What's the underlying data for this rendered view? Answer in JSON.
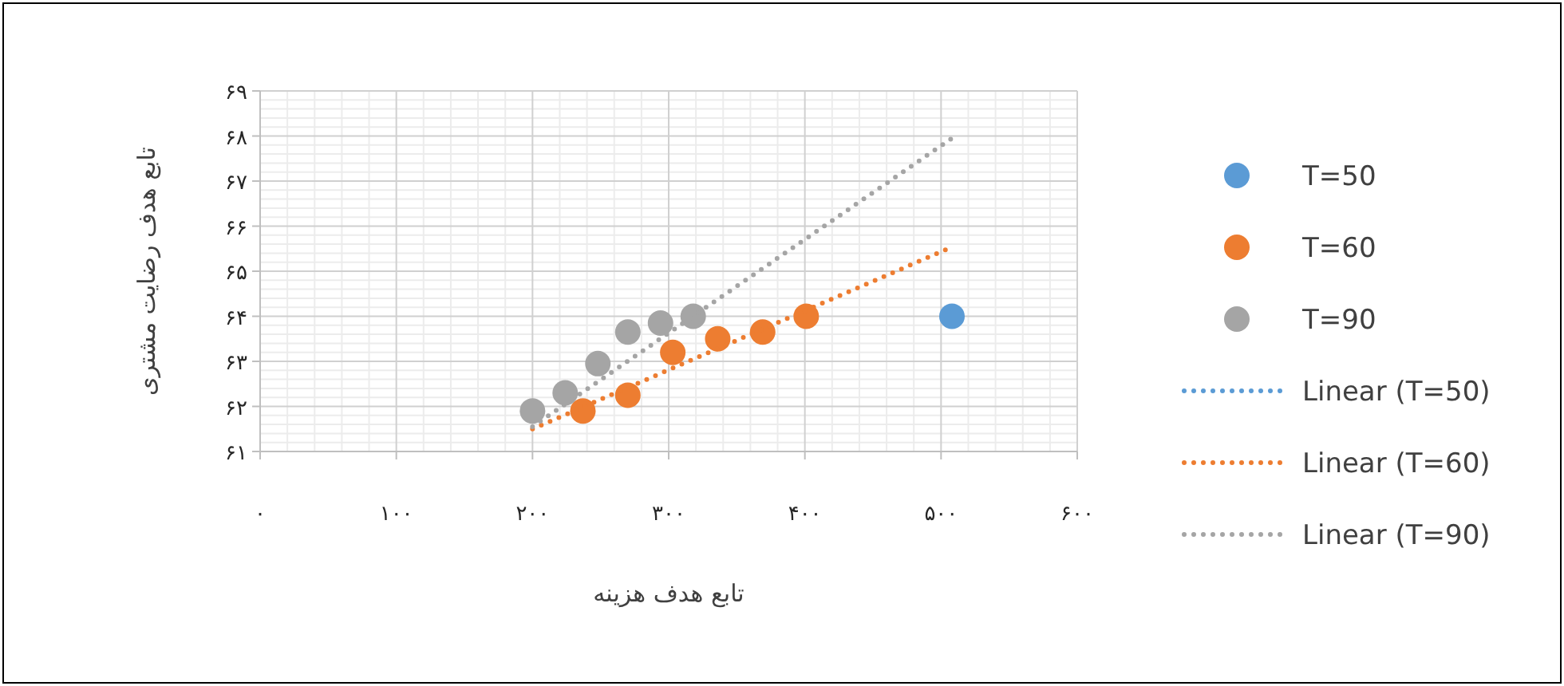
{
  "chart_data": {
    "type": "scatter",
    "xlabel": "تابع هدف هزینه",
    "ylabel": "تابع هدف رضایت مشتری",
    "xlim": [
      0,
      600
    ],
    "ylim": [
      61,
      69
    ],
    "xticks": [
      {
        "value": 0,
        "label": "۰"
      },
      {
        "value": 100,
        "label": "۱۰۰"
      },
      {
        "value": 200,
        "label": "۲۰۰"
      },
      {
        "value": 300,
        "label": "۳۰۰"
      },
      {
        "value": 400,
        "label": "۴۰۰"
      },
      {
        "value": 500,
        "label": "۵۰۰"
      },
      {
        "value": 600,
        "label": "۶۰۰"
      }
    ],
    "yticks": [
      {
        "value": 61,
        "label": "۶۱"
      },
      {
        "value": 62,
        "label": "۶۲"
      },
      {
        "value": 63,
        "label": "۶۳"
      },
      {
        "value": 64,
        "label": "۶۴"
      },
      {
        "value": 65,
        "label": "۶۵"
      },
      {
        "value": 66,
        "label": "۶۶"
      },
      {
        "value": 67,
        "label": "۶۷"
      },
      {
        "value": 68,
        "label": "۶۸"
      },
      {
        "value": 69,
        "label": "۶۹"
      }
    ],
    "grid": true,
    "legend": "right",
    "series": [
      {
        "name": "T=50",
        "marker": "circle",
        "color": "#5b9bd5",
        "x": [
          508
        ],
        "values": [
          64.0
        ]
      },
      {
        "name": "T=60",
        "marker": "circle",
        "color": "#ed7d31",
        "x": [
          237,
          270,
          303,
          336,
          369,
          401
        ],
        "values": [
          61.9,
          62.25,
          63.2,
          63.5,
          63.65,
          64.0
        ]
      },
      {
        "name": "T=90",
        "marker": "circle",
        "color": "#a5a5a5",
        "x": [
          200,
          224,
          248,
          270,
          294,
          318
        ],
        "values": [
          61.9,
          62.3,
          62.95,
          63.65,
          63.85,
          64.0
        ]
      },
      {
        "name": "Linear (T=50)",
        "type": "line",
        "line_style": "dotted",
        "color": "#5b9bd5"
      },
      {
        "name": "Linear (T=60)",
        "type": "line",
        "line_style": "dotted",
        "marker": "none",
        "color": "#ed7d31",
        "x": [
          200,
          509
        ],
        "values": [
          61.5,
          65.55
        ]
      },
      {
        "name": "Linear (T=90)",
        "type": "line",
        "line_style": "dotted",
        "marker": "none",
        "color": "#a5a5a5",
        "x": [
          200,
          508
        ],
        "values": [
          61.55,
          67.95
        ]
      }
    ]
  }
}
